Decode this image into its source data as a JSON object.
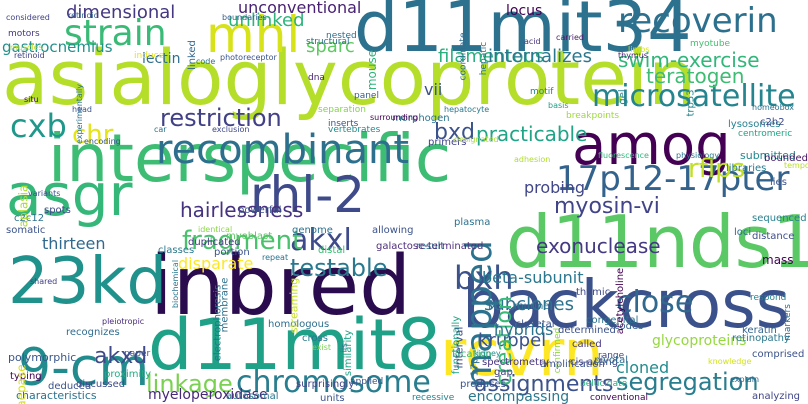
{
  "words": [
    {
      "text": "asialoglycoprotein",
      "color": "#b5de2b"
    },
    {
      "text": "interspecific",
      "color": "#3dbc74"
    },
    {
      "text": "inbred",
      "color": "#2a0c4e"
    },
    {
      "text": "d11mit34",
      "color": "#2c728e"
    },
    {
      "text": "d11nds1",
      "color": "#5ac864"
    },
    {
      "text": "backcross",
      "color": "#3b518b"
    },
    {
      "text": "d11mit8",
      "color": "#1fa187"
    },
    {
      "text": "rcvrn",
      "color": "#fde725"
    },
    {
      "text": "amog",
      "color": "#440154"
    },
    {
      "text": "rhl-2",
      "color": "#3e4a89"
    },
    {
      "text": "asgr",
      "color": "#35b779"
    },
    {
      "text": "23kd",
      "color": "#21918c"
    },
    {
      "text": "9-cm",
      "color": "#228b8d"
    },
    {
      "text": "chromosome",
      "color": "#287d8e"
    },
    {
      "text": "recombinant",
      "color": "#2d708e"
    },
    {
      "text": "mhl",
      "color": "#d8e219"
    },
    {
      "text": "strain",
      "color": "#3aba76"
    },
    {
      "text": "recoverin",
      "color": "#2d708e"
    },
    {
      "text": "17p12-17pter",
      "color": "#33638d"
    },
    {
      "text": "microsatellite",
      "color": "#25858e"
    },
    {
      "text": "mapped",
      "color": "#2c728e"
    },
    {
      "text": "close",
      "color": "#31688e"
    },
    {
      "text": "bxh",
      "color": "#3b528b"
    },
    {
      "text": "akxl",
      "color": "#3e4a89"
    },
    {
      "text": "testable",
      "color": "#2a788e"
    },
    {
      "text": "fragment",
      "color": "#4ac16d"
    },
    {
      "text": "linkage",
      "color": "#7ad151"
    },
    {
      "text": "segregation",
      "color": "#287d8e"
    },
    {
      "text": "assignments",
      "color": "#3b528b"
    },
    {
      "text": "restriction",
      "color": "#424086"
    },
    {
      "text": "cxb",
      "color": "#1f988b"
    },
    {
      "text": "chr",
      "color": "#e5e419"
    },
    {
      "text": "akxd",
      "color": "#3e4a89"
    },
    {
      "text": "hairlessness",
      "color": "#46327e"
    },
    {
      "text": "exonuclease",
      "color": "#443983"
    },
    {
      "text": "rflps",
      "color": "#c0df25"
    },
    {
      "text": "myosin-vi",
      "color": "#414487"
    },
    {
      "text": "swim-exercise",
      "color": "#32b67a"
    },
    {
      "text": "teratogen",
      "color": "#3fbc73"
    },
    {
      "text": "bxd",
      "color": "#3b528b"
    },
    {
      "text": "practicable",
      "color": "#20a486"
    },
    {
      "text": "unlinked",
      "color": "#2fb47c"
    },
    {
      "text": "unconventional",
      "color": "#482173"
    },
    {
      "text": "sparc",
      "color": "#5ec962"
    },
    {
      "text": "dimensional",
      "color": "#453781"
    },
    {
      "text": "filamentous",
      "color": "#2ab07f"
    },
    {
      "text": "internalizes",
      "color": "#2a788e"
    },
    {
      "text": "lectin",
      "color": "#2e6e8e"
    },
    {
      "text": "gastrocnemius",
      "color": "#21918c"
    },
    {
      "text": "kruppel",
      "color": "#3b528b"
    },
    {
      "text": "subclones",
      "color": "#2c728e"
    },
    {
      "text": "beta-subunit",
      "color": "#2a778e"
    },
    {
      "text": "creation",
      "color": "#3aba76"
    },
    {
      "text": "thirteen",
      "color": "#31688e"
    },
    {
      "text": "cloned",
      "color": "#228c8d"
    },
    {
      "text": "glycoproteins",
      "color": "#95d840"
    },
    {
      "text": "probing",
      "color": "#404688"
    },
    {
      "text": "hybrids",
      "color": "#2c738e"
    },
    {
      "text": "myeloperoxidase",
      "color": "#482878"
    },
    {
      "text": "encompassing",
      "color": "#2a788e"
    },
    {
      "text": "polymorphic",
      "color": "#39568c"
    },
    {
      "text": "characteristics",
      "color": "#2c728e"
    },
    {
      "text": "vii",
      "color": "#3b528b"
    },
    {
      "text": "locus",
      "color": "#440154"
    },
    {
      "text": "considered",
      "color": "#414487"
    },
    {
      "text": "motors",
      "color": "#453882"
    },
    {
      "text": "muscles",
      "color": "#c2df23"
    },
    {
      "text": "retinoic",
      "color": "#355f8d"
    },
    {
      "text": "retinoid",
      "color": "#414487"
    },
    {
      "text": "boundaries",
      "color": "#365d8d"
    },
    {
      "text": "linked",
      "color": "#31688e"
    },
    {
      "text": "structural",
      "color": "#2f6c8e"
    },
    {
      "text": "nested",
      "color": "#2e6e8e"
    },
    {
      "text": "photoreceptor",
      "color": "#3a548c"
    },
    {
      "text": "dna",
      "color": "#482475"
    },
    {
      "text": "mouse",
      "color": "#2fb47c"
    },
    {
      "text": "coordinate",
      "color": "#2f6b8e"
    },
    {
      "text": "hepatic",
      "color": "#2d718e"
    },
    {
      "text": "acid",
      "color": "#46337f"
    },
    {
      "text": "carried",
      "color": "#481a6c"
    },
    {
      "text": "thymus",
      "color": "#481f70"
    },
    {
      "text": "myotube",
      "color": "#44bf70"
    },
    {
      "text": "limbs",
      "color": "#d5e21a"
    },
    {
      "text": "lysosomes",
      "color": "#26828e"
    },
    {
      "text": "homeobox",
      "color": "#2c728e"
    },
    {
      "text": "c2h2",
      "color": "#3e4a89"
    },
    {
      "text": "centromeric",
      "color": "#20a386"
    },
    {
      "text": "trp53",
      "color": "#24868e"
    },
    {
      "text": "gel",
      "color": "#26818e"
    },
    {
      "text": "basis",
      "color": "#1f9f88"
    },
    {
      "text": "motif",
      "color": "#25848e"
    },
    {
      "text": "hepatocyte",
      "color": "#2a788e"
    },
    {
      "text": "breakpoints",
      "color": "#9dd93b"
    },
    {
      "text": "morphogen",
      "color": "#2c738e"
    },
    {
      "text": "inserts",
      "color": "#3b528b"
    },
    {
      "text": "vertebrates",
      "color": "#238a8d"
    },
    {
      "text": "separation",
      "color": "#84d44b"
    },
    {
      "text": "surrounding",
      "color": "#440154"
    },
    {
      "text": "panel",
      "color": "#375b8d"
    },
    {
      "text": "exclusion",
      "color": "#3f4889"
    },
    {
      "text": "car",
      "color": "#2c728e"
    },
    {
      "text": "primers",
      "color": "#414487"
    },
    {
      "text": "designated",
      "color": "#a8db34"
    },
    {
      "text": "adhesion",
      "color": "#b0dd2f"
    },
    {
      "text": "fluorescence",
      "color": "#32b67a"
    },
    {
      "text": "physiology",
      "color": "#2b758e"
    },
    {
      "text": "libraries",
      "color": "#2a788e"
    },
    {
      "text": "submitted",
      "color": "#23898e"
    },
    {
      "text": "bounded",
      "color": "#471365"
    },
    {
      "text": "temporal",
      "color": "#bade28"
    },
    {
      "text": "lies",
      "color": "#3b528b"
    },
    {
      "text": "sequenced",
      "color": "#27808e"
    },
    {
      "text": "loci",
      "color": "#2e6d8e"
    },
    {
      "text": "distance",
      "color": "#3d4e8a"
    },
    {
      "text": "mass",
      "color": "#440154"
    },
    {
      "text": "neuro-astrocytic",
      "color": "#7fd34e"
    },
    {
      "text": "respond",
      "color": "#25848e"
    },
    {
      "text": "keratin",
      "color": "#32658e"
    },
    {
      "text": "markers",
      "color": "#2f6c8e"
    },
    {
      "text": "retinopathy",
      "color": "#2a788e"
    },
    {
      "text": "comprised",
      "color": "#3b528b"
    },
    {
      "text": "knowledge",
      "color": "#d2e21b"
    },
    {
      "text": "explain",
      "color": "#31688e"
    },
    {
      "text": "analyzing",
      "color": "#404588"
    },
    {
      "text": "conventional",
      "color": "#440154"
    },
    {
      "text": "range",
      "color": "#404588"
    },
    {
      "text": "belucidate",
      "color": "#29af7f"
    },
    {
      "text": "produces",
      "color": "#3a548c"
    },
    {
      "text": "gap",
      "color": "#424186"
    },
    {
      "text": "recessive",
      "color": "#26818e"
    },
    {
      "text": "applied",
      "color": "#3b528b"
    },
    {
      "text": "units",
      "color": "#3b528b"
    },
    {
      "text": "autosomal",
      "color": "#2a788e"
    },
    {
      "text": "surprisingly",
      "color": "#414487"
    },
    {
      "text": "deduced",
      "color": "#3b528b"
    },
    {
      "text": "discussed",
      "color": "#3e4a89"
    },
    {
      "text": "proximity",
      "color": "#25ab82"
    },
    {
      "text": "typing",
      "color": "#440154"
    },
    {
      "text": "paper",
      "color": "#3b528b"
    },
    {
      "text": "pleiotropic",
      "color": "#472c7a"
    },
    {
      "text": "recognizes",
      "color": "#2f6c8e"
    },
    {
      "text": "shared",
      "color": "#424086"
    },
    {
      "text": "classes",
      "color": "#2a788e"
    },
    {
      "text": "duplicated",
      "color": "#453781"
    },
    {
      "text": "identical",
      "color": "#8bd646"
    },
    {
      "text": "myoblast",
      "color": "#5cc863"
    },
    {
      "text": "repeat",
      "color": "#2c728e"
    },
    {
      "text": "homologous",
      "color": "#2e6e8e"
    },
    {
      "text": "similarity",
      "color": "#20a386"
    },
    {
      "text": "cross",
      "color": "#2a788e"
    },
    {
      "text": "exist",
      "color": "#7ad151"
    },
    {
      "text": "iis",
      "color": "#2c728e"
    },
    {
      "text": "functionally",
      "color": "#20a386"
    },
    {
      "text": "location",
      "color": "#3fbc73"
    },
    {
      "text": "17p",
      "color": "#2c728e"
    },
    {
      "text": "kidney",
      "color": "#238a8d"
    },
    {
      "text": "spectrometry",
      "color": "#46327e"
    },
    {
      "text": "amplification",
      "color": "#3b528b"
    },
    {
      "text": "cis-acting",
      "color": "#404688"
    },
    {
      "text": "pivotal",
      "color": "#2f6b8e"
    },
    {
      "text": "confirmed",
      "color": "#8fd744"
    },
    {
      "text": "called",
      "color": "#453882"
    },
    {
      "text": "codes",
      "color": "#34618d"
    },
    {
      "text": "determined",
      "color": "#3b528b"
    },
    {
      "text": "congenital",
      "color": "#2c728e"
    },
    {
      "text": "acetylcholine",
      "color": "#440154"
    },
    {
      "text": "thymic",
      "color": "#3e4a89"
    },
    {
      "text": "murine",
      "color": "#2c728e"
    },
    {
      "text": "ix",
      "color": "#2d708e"
    },
    {
      "text": "skeletal",
      "color": "#3b528b"
    },
    {
      "text": "plasma",
      "color": "#2c728e"
    },
    {
      "text": "result",
      "color": "#2c728e"
    },
    {
      "text": "allowing",
      "color": "#3b528b"
    },
    {
      "text": "galactose-terminated",
      "color": "#4e2d7c"
    },
    {
      "text": "powerful",
      "color": "#3b528b"
    },
    {
      "text": "genome",
      "color": "#2c728e"
    },
    {
      "text": "distal",
      "color": "#3dbc74"
    },
    {
      "text": "interval",
      "color": "#3e4a89"
    },
    {
      "text": "portion",
      "color": "#3b528b"
    },
    {
      "text": "disparate",
      "color": "#fde725"
    },
    {
      "text": "electrophoresis",
      "color": "#2c728e"
    },
    {
      "text": "streaming",
      "color": "#c5e021"
    },
    {
      "text": "membrane",
      "color": "#2c728e"
    },
    {
      "text": "biochemical",
      "color": "#2a788e"
    },
    {
      "text": "variants",
      "color": "#3b528b"
    },
    {
      "text": "spots",
      "color": "#3e4a89"
    },
    {
      "text": "c2c12",
      "color": "#2c728e"
    },
    {
      "text": "somatic",
      "color": "#3b528b"
    },
    {
      "text": "aplasia",
      "color": "#addc30"
    },
    {
      "text": "encoding",
      "color": "#3b528b"
    },
    {
      "text": "experimentally",
      "color": "#2c728e"
    },
    {
      "text": "head",
      "color": "#3b528b"
    },
    {
      "text": "situ",
      "color": "#440154"
    },
    {
      "text": "code",
      "color": "#2c728e"
    },
    {
      "text": "induce",
      "color": "#e7e419"
    },
    {
      "text": "aepase",
      "color": "#d8e219"
    }
  ]
}
